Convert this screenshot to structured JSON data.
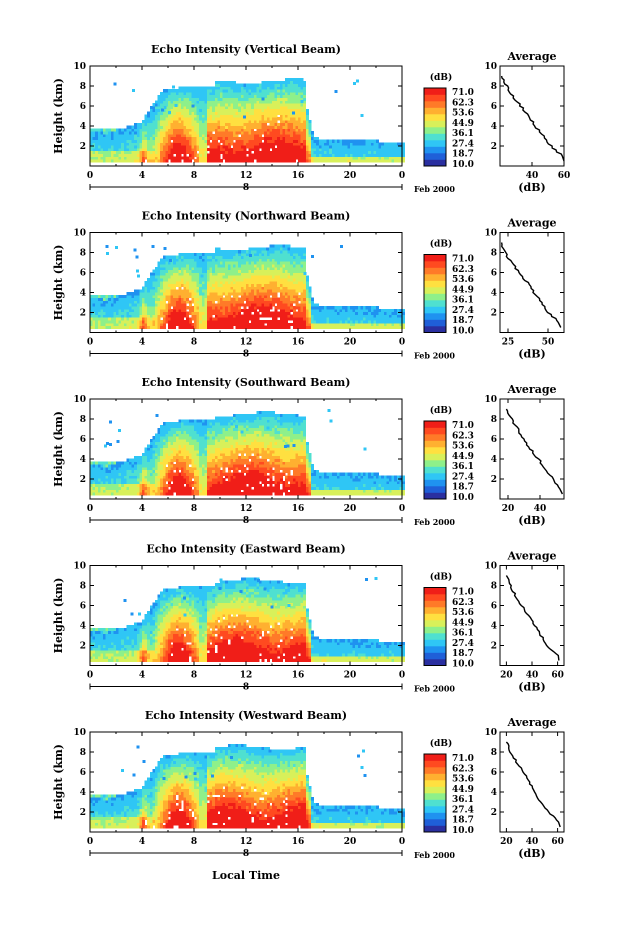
{
  "chart_data": {
    "type": "heatmap",
    "xlabel": "Local Time",
    "date_label": "Feb 2000",
    "day_label": "8",
    "x_ticks": [
      "0",
      "4",
      "8",
      "12",
      "16",
      "20",
      "0"
    ],
    "xlim": [
      0,
      24
    ],
    "y_ticks": [
      "10",
      "8",
      "6",
      "4",
      "2"
    ],
    "ylabel": "Height (km)",
    "ylim": [
      0,
      10
    ],
    "colorbar": {
      "label": "(dB)",
      "ticks": [
        "71.0",
        "62.3",
        "53.6",
        "44.9",
        "36.1",
        "27.4",
        "18.7",
        "10.0"
      ],
      "range": [
        10.0,
        71.0
      ],
      "colors": [
        "#2a2fa0",
        "#1f5fd8",
        "#1f92f0",
        "#2fc6f5",
        "#4fe0d0",
        "#8ef08a",
        "#d8f05a",
        "#ffe040",
        "#ffb030",
        "#ff7a28",
        "#ff4a20",
        "#f01e18"
      ]
    },
    "avg_title": "Average",
    "avg_xlabel": "(dB)",
    "avg_y_ticks": [
      "10",
      "8",
      "6",
      "4",
      "2"
    ],
    "panels": [
      {
        "title": "Echo Intensity (Vertical Beam)",
        "avg_x_ticks": [
          "40",
          "60"
        ],
        "avg_xlim": [
          20,
          60
        ],
        "profile": {
          "height": [
            1,
            2,
            3,
            4,
            5,
            6,
            7,
            8,
            9
          ],
          "value": [
            59,
            52,
            47,
            42,
            38,
            33,
            28,
            24,
            21
          ]
        }
      },
      {
        "title": "Echo Intensity (Northward Beam)",
        "avg_x_ticks": [
          "25",
          "50"
        ],
        "avg_xlim": [
          20,
          60
        ],
        "profile": {
          "height": [
            1,
            2,
            3,
            4,
            5,
            6,
            7,
            8,
            9
          ],
          "value": [
            57,
            50,
            46,
            41,
            37,
            32,
            27,
            23,
            21
          ]
        }
      },
      {
        "title": "Echo Intensity (Southward Beam)",
        "avg_x_ticks": [
          "20",
          "40"
        ],
        "avg_xlim": [
          15,
          55
        ],
        "profile": {
          "height": [
            1,
            2,
            3,
            4,
            5,
            6,
            7,
            8,
            9
          ],
          "value": [
            53,
            48,
            43,
            39,
            34,
            30,
            26,
            22,
            19
          ]
        }
      },
      {
        "title": "Echo Intensity (Eastward Beam)",
        "avg_x_ticks": [
          "20",
          "40",
          "60"
        ],
        "avg_xlim": [
          15,
          65
        ],
        "profile": {
          "height": [
            1,
            2,
            3,
            4,
            5,
            6,
            7,
            8,
            9
          ],
          "value": [
            60,
            52,
            47,
            42,
            37,
            32,
            27,
            23,
            20
          ]
        }
      },
      {
        "title": "Echo Intensity (Westward Beam)",
        "avg_x_ticks": [
          "20",
          "40",
          "60"
        ],
        "avg_xlim": [
          15,
          65
        ],
        "profile": {
          "height": [
            1,
            2,
            3,
            4,
            5,
            6,
            7,
            8,
            9
          ],
          "value": [
            61,
            53,
            47,
            42,
            38,
            33,
            28,
            23,
            20
          ]
        }
      }
    ]
  }
}
